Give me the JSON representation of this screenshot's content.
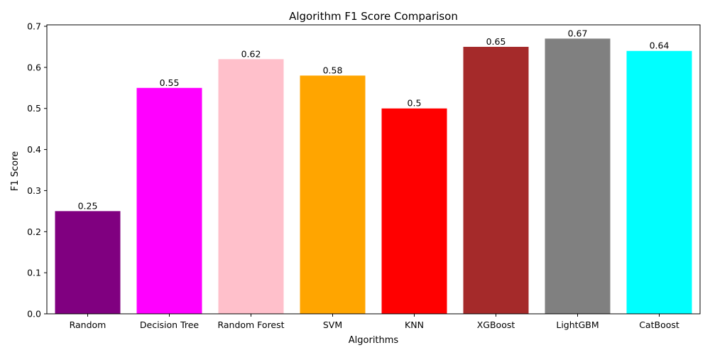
{
  "chart_data": {
    "type": "bar",
    "title": "Algorithm F1 Score Comparison",
    "xlabel": "Algorithms",
    "ylabel": "F1 Score",
    "categories": [
      "Random",
      "Decision Tree",
      "Random Forest",
      "SVM",
      "KNN",
      "XGBoost",
      "LightGBM",
      "CatBoost"
    ],
    "values": [
      0.25,
      0.55,
      0.62,
      0.58,
      0.5,
      0.65,
      0.67,
      0.64
    ],
    "data_labels": [
      "0.25",
      "0.55",
      "0.62",
      "0.58",
      "0.5",
      "0.65",
      "0.67",
      "0.64"
    ],
    "colors": [
      "#800080",
      "#ff00ff",
      "#ffc0cb",
      "#ffa500",
      "#ff0000",
      "#a52a2a",
      "#808080",
      "#00ffff"
    ],
    "ylim": [
      0,
      0.7035
    ],
    "yticks": [
      0.0,
      0.1,
      0.2,
      0.3,
      0.4,
      0.5,
      0.6,
      0.7
    ],
    "ytick_labels": [
      "0.0",
      "0.1",
      "0.2",
      "0.3",
      "0.4",
      "0.5",
      "0.6",
      "0.7"
    ],
    "grid": false,
    "legend": "none"
  }
}
